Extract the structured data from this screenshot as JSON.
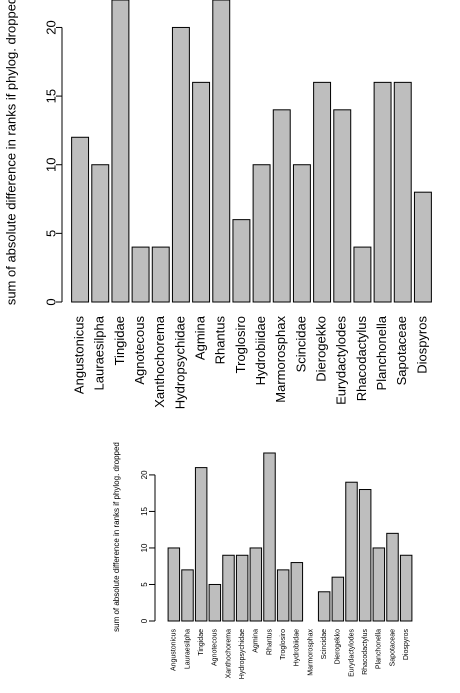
{
  "chart_data": [
    {
      "type": "bar",
      "ylabel": "sum of absolute difference in ranks if phylog. dropped",
      "categories": [
        "Angustonicus",
        "Lauraesilpha",
        "Tingidae",
        "Agnotecous",
        "Xanthochorema",
        "Hydropsychidae",
        "Agmina",
        "Rhantus",
        "Troglosiro",
        "Hydrobiidae",
        "Marmorosphax",
        "Scincidae",
        "Dierogekko",
        "Eurydactylodes",
        "Rhacodactylus",
        "Planchonella",
        "Sapotaceae",
        "Diospyros"
      ],
      "values": [
        12,
        10,
        22,
        4,
        4,
        20,
        16,
        22,
        6,
        10,
        14,
        10,
        16,
        14,
        4,
        16,
        16,
        8
      ],
      "color": "#bebebe",
      "ylim": [
        0,
        22
      ],
      "yticks": [
        0,
        5,
        10,
        15,
        20
      ]
    },
    {
      "type": "bar",
      "ylabel": "sum of absolute difference in ranks if phylog. dropped",
      "categories": [
        "Angustonicus",
        "Lauraesilpha",
        "Tingidae",
        "Agnotecous",
        "Xanthochorema",
        "Hydropsychidae",
        "Agmina",
        "Rhantus",
        "Troglosiro",
        "Hydrobiidae",
        "Marmorosphax",
        "Scincidae",
        "Dierogekko",
        "Eurydactylodes",
        "Rhacodactylus",
        "Planchonella",
        "Sapotaceae",
        "Diospyros"
      ],
      "values": [
        10,
        7,
        21,
        5,
        9,
        9,
        10,
        23,
        7,
        8,
        0,
        4,
        6,
        19,
        18,
        10,
        12,
        9
      ],
      "color": "#bebebe",
      "ylim": [
        0,
        23
      ],
      "yticks": [
        0,
        5,
        10,
        15,
        20
      ]
    }
  ]
}
